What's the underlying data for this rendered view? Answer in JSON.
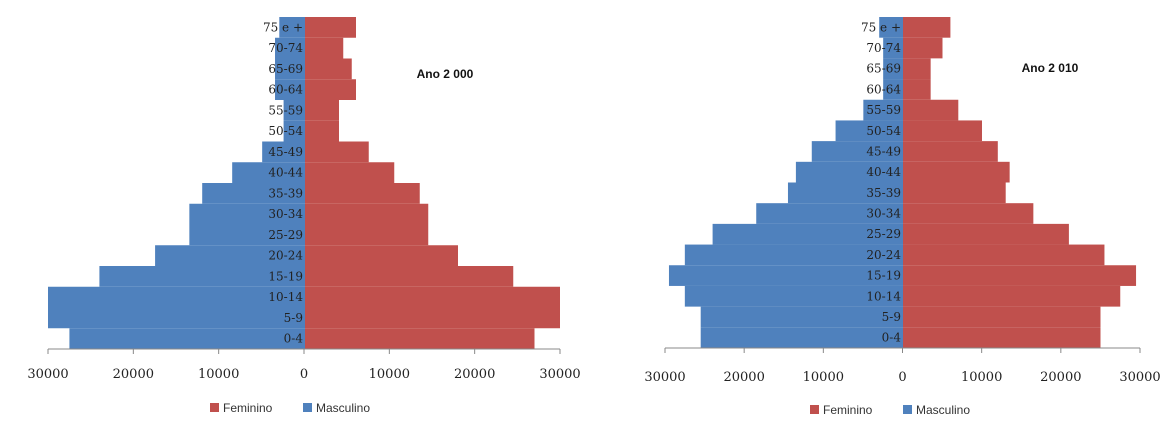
{
  "colors": {
    "feminino": "#C0504D",
    "masculino": "#4F81BD"
  },
  "legend": {
    "feminino": "Feminino",
    "masculino": "Masculino"
  },
  "chart_data": [
    {
      "type": "bar",
      "orientation": "horizontal",
      "title": "Ano 2 000",
      "categories": [
        "0-4",
        "5-9",
        "10-14",
        "15-19",
        "20-24",
        "25-29",
        "30-34",
        "35-39",
        "40-44",
        "45-49",
        "50-54",
        "55-59",
        "60-64",
        "65-69",
        "70-74",
        "75 e +"
      ],
      "series": [
        {
          "name": "Feminino",
          "values": [
            27000,
            30000,
            30000,
            24500,
            18000,
            14500,
            14500,
            13500,
            10500,
            7500,
            4000,
            4000,
            6000,
            5500,
            4500,
            6000
          ]
        },
        {
          "name": "Masculino",
          "values": [
            27500,
            30000,
            30000,
            24000,
            17500,
            13500,
            13500,
            12000,
            8500,
            5000,
            2500,
            2500,
            3500,
            3500,
            3500,
            3000
          ]
        }
      ],
      "xlim": [
        -30000,
        30000
      ],
      "xticks": [
        "30000",
        "20000",
        "10000",
        "0",
        "10000",
        "20000",
        "30000"
      ],
      "legend_position": "bottom"
    },
    {
      "type": "bar",
      "orientation": "horizontal",
      "title": "Ano 2 010",
      "categories": [
        "0-4",
        "5-9",
        "10-14",
        "15-19",
        "20-24",
        "25-29",
        "30-34",
        "35-39",
        "40-44",
        "45-49",
        "50-54",
        "55-59",
        "60-64",
        "65-69",
        "70-74",
        "75 e +"
      ],
      "series": [
        {
          "name": "Feminino",
          "values": [
            25000,
            25000,
            27500,
            29500,
            25500,
            21000,
            16500,
            13000,
            13500,
            12000,
            10000,
            7000,
            3500,
            3500,
            5000,
            6000
          ]
        },
        {
          "name": "Masculino",
          "values": [
            25500,
            25500,
            27500,
            29500,
            27500,
            24000,
            18500,
            14500,
            13500,
            11500,
            8500,
            5000,
            2500,
            2500,
            2500,
            3000
          ]
        }
      ],
      "xlim": [
        -30000,
        30000
      ],
      "xticks": [
        "30000",
        "20000",
        "10000",
        "0",
        "10000",
        "20000",
        "30000"
      ],
      "legend_position": "bottom"
    }
  ]
}
